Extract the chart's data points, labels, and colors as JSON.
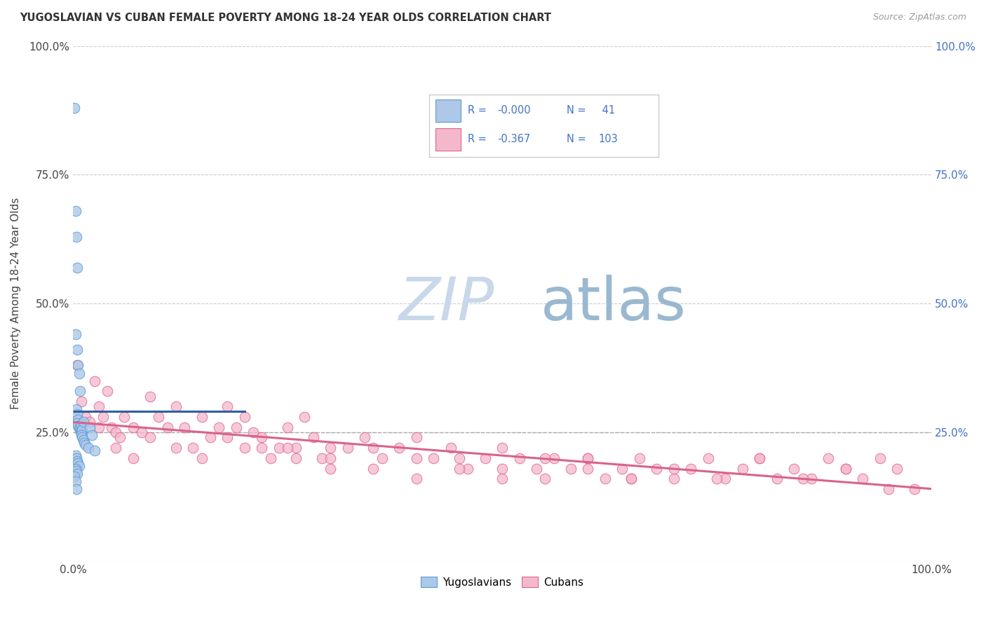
{
  "title": "YUGOSLAVIAN VS CUBAN FEMALE POVERTY AMONG 18-24 YEAR OLDS CORRELATION CHART",
  "source": "Source: ZipAtlas.com",
  "ylabel": "Female Poverty Among 18-24 Year Olds",
  "legend_r_yug": "-0.000",
  "legend_n_yug": "41",
  "legend_r_cub": "-0.367",
  "legend_n_cub": "103",
  "color_yug_fill": "#adc8e8",
  "color_yug_edge": "#5b9bd5",
  "color_cub_fill": "#f4b8cc",
  "color_cub_edge": "#e06090",
  "color_yug_line": "#2e5fa3",
  "color_cub_line": "#d9638a",
  "color_legend_text": "#4472c4",
  "color_dashed": "#aaaaaa",
  "color_grid": "#cccccc",
  "watermark_zip_color": "#c8d8ea",
  "watermark_atlas_color": "#9ab8d0",
  "background_color": "#ffffff",
  "xlim": [
    0,
    100
  ],
  "ylim": [
    0,
    100
  ],
  "dashed_line_y": 25.0,
  "figsize": [
    14.06,
    8.92
  ],
  "dpi": 100,
  "yug_x": [
    0.2,
    0.3,
    0.4,
    0.5,
    0.3,
    0.5,
    0.6,
    0.7,
    0.8,
    0.4,
    0.5,
    0.6,
    0.5,
    0.6,
    0.7,
    0.8,
    0.9,
    1.0,
    1.0,
    1.1,
    1.2,
    1.0,
    1.1,
    1.2,
    1.3,
    1.5,
    1.8,
    2.0,
    2.2,
    2.5,
    0.3,
    0.4,
    0.5,
    0.6,
    0.7,
    0.3,
    0.4,
    0.5,
    0.2,
    0.3,
    0.4
  ],
  "yug_y": [
    88.0,
    68.0,
    63.0,
    57.0,
    44.0,
    41.0,
    38.0,
    36.5,
    33.0,
    29.5,
    28.5,
    27.5,
    26.8,
    26.2,
    25.8,
    25.5,
    25.2,
    25.0,
    26.5,
    25.5,
    27.0,
    24.5,
    24.0,
    23.5,
    23.0,
    22.5,
    22.0,
    26.0,
    24.5,
    21.5,
    20.5,
    20.0,
    19.5,
    19.0,
    18.5,
    18.0,
    17.5,
    17.0,
    16.5,
    15.5,
    14.0
  ],
  "cub_x": [
    0.5,
    1.0,
    1.5,
    2.0,
    2.5,
    3.0,
    3.5,
    4.0,
    4.5,
    5.0,
    5.5,
    6.0,
    7.0,
    8.0,
    9.0,
    10.0,
    11.0,
    12.0,
    13.0,
    14.0,
    15.0,
    16.0,
    17.0,
    18.0,
    19.0,
    20.0,
    21.0,
    22.0,
    23.0,
    24.0,
    25.0,
    26.0,
    27.0,
    28.0,
    29.0,
    30.0,
    32.0,
    34.0,
    36.0,
    38.0,
    40.0,
    42.0,
    44.0,
    46.0,
    48.0,
    50.0,
    52.0,
    54.0,
    56.0,
    58.0,
    60.0,
    62.0,
    64.0,
    66.0,
    68.0,
    70.0,
    72.0,
    74.0,
    76.0,
    78.0,
    80.0,
    82.0,
    84.0,
    86.0,
    88.0,
    90.0,
    92.0,
    94.0,
    96.0,
    98.0,
    3.0,
    5.0,
    7.0,
    9.0,
    12.0,
    15.0,
    18.0,
    22.0,
    26.0,
    30.0,
    35.0,
    40.0,
    45.0,
    50.0,
    55.0,
    60.0,
    65.0,
    70.0,
    75.0,
    80.0,
    85.0,
    90.0,
    95.0,
    20.0,
    25.0,
    30.0,
    35.0,
    40.0,
    45.0,
    50.0,
    55.0,
    60.0,
    65.0
  ],
  "cub_y": [
    38.0,
    31.0,
    28.0,
    27.0,
    35.0,
    30.0,
    28.0,
    33.0,
    26.0,
    25.0,
    24.0,
    28.0,
    26.0,
    25.0,
    32.0,
    28.0,
    26.0,
    30.0,
    26.0,
    22.0,
    28.0,
    24.0,
    26.0,
    30.0,
    26.0,
    22.0,
    25.0,
    24.0,
    20.0,
    22.0,
    26.0,
    22.0,
    28.0,
    24.0,
    20.0,
    22.0,
    22.0,
    24.0,
    20.0,
    22.0,
    24.0,
    20.0,
    22.0,
    18.0,
    20.0,
    22.0,
    20.0,
    18.0,
    20.0,
    18.0,
    20.0,
    16.0,
    18.0,
    20.0,
    18.0,
    16.0,
    18.0,
    20.0,
    16.0,
    18.0,
    20.0,
    16.0,
    18.0,
    16.0,
    20.0,
    18.0,
    16.0,
    20.0,
    18.0,
    14.0,
    26.0,
    22.0,
    20.0,
    24.0,
    22.0,
    20.0,
    24.0,
    22.0,
    20.0,
    18.0,
    22.0,
    20.0,
    18.0,
    16.0,
    20.0,
    18.0,
    16.0,
    18.0,
    16.0,
    20.0,
    16.0,
    18.0,
    14.0,
    28.0,
    22.0,
    20.0,
    18.0,
    16.0,
    20.0,
    18.0,
    16.0,
    20.0,
    16.0
  ]
}
